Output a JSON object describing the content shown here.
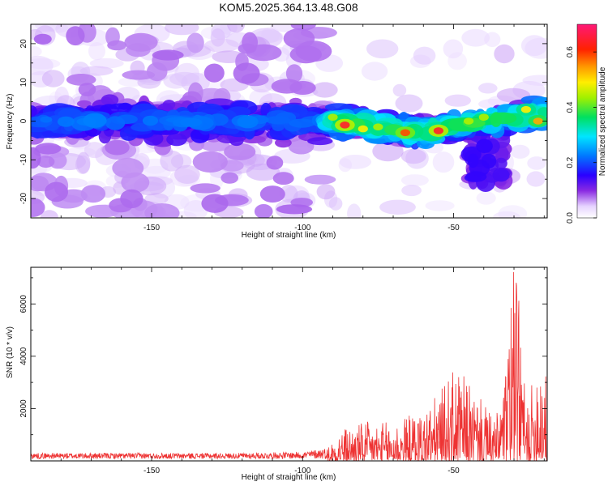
{
  "figure": {
    "title": "KOM5.2025.364.13.48.G08"
  },
  "chart_data": [
    {
      "type": "heatmap",
      "title": "KOM5.2025.364.13.48.G08",
      "xlabel": "Height of straight line (km)",
      "ylabel": "Frequency (Hz)",
      "xlim": [
        -190,
        -19
      ],
      "ylim": [
        -25,
        25
      ],
      "xticks": [
        -150,
        -100,
        -50
      ],
      "yticks": [
        -20,
        -10,
        0,
        10,
        20
      ],
      "colorbar": {
        "label": "Normalized spectral amplitude",
        "range": [
          0,
          0.7
        ],
        "ticks": [
          0.0,
          0.2,
          0.4,
          0.6
        ]
      },
      "description_points": [
        {
          "x": -90,
          "y": 1,
          "v": 0.45
        },
        {
          "x": -86,
          "y": -1,
          "v": 0.65
        },
        {
          "x": -80,
          "y": -2,
          "v": 0.5
        },
        {
          "x": -75,
          "y": -1.5,
          "v": 0.45
        },
        {
          "x": -66,
          "y": -3,
          "v": 0.6
        },
        {
          "x": -55,
          "y": -2.5,
          "v": 0.65
        },
        {
          "x": -45,
          "y": 0,
          "v": 0.45
        },
        {
          "x": -40,
          "y": 1,
          "v": 0.45
        },
        {
          "x": -26,
          "y": 3,
          "v": 0.5
        },
        {
          "x": -22,
          "y": 0,
          "v": 0.55
        }
      ]
    },
    {
      "type": "line",
      "xlabel": "Height of straight line (km)",
      "ylabel": "SNR (10 * v/v)",
      "xlim": [
        -190,
        -19
      ],
      "ylim": [
        0,
        7400
      ],
      "xticks": [
        -150,
        -100,
        -50
      ],
      "yticks": [
        2000,
        4000,
        6000
      ],
      "series": [
        {
          "name": "SNR",
          "color": "#ee3333",
          "envelope_x": [
            -190,
            -150,
            -120,
            -100,
            -92,
            -88,
            -80,
            -70,
            -60,
            -55,
            -50,
            -46,
            -40,
            -36,
            -32,
            -30,
            -28,
            -26,
            -24,
            -22,
            -20,
            -19
          ],
          "envelope_y": [
            300,
            300,
            300,
            350,
            500,
            1200,
            1500,
            1500,
            2000,
            2600,
            3500,
            3200,
            2200,
            1600,
            4200,
            7400,
            5800,
            2000,
            3000,
            4800,
            4900,
            2000
          ]
        }
      ]
    }
  ]
}
